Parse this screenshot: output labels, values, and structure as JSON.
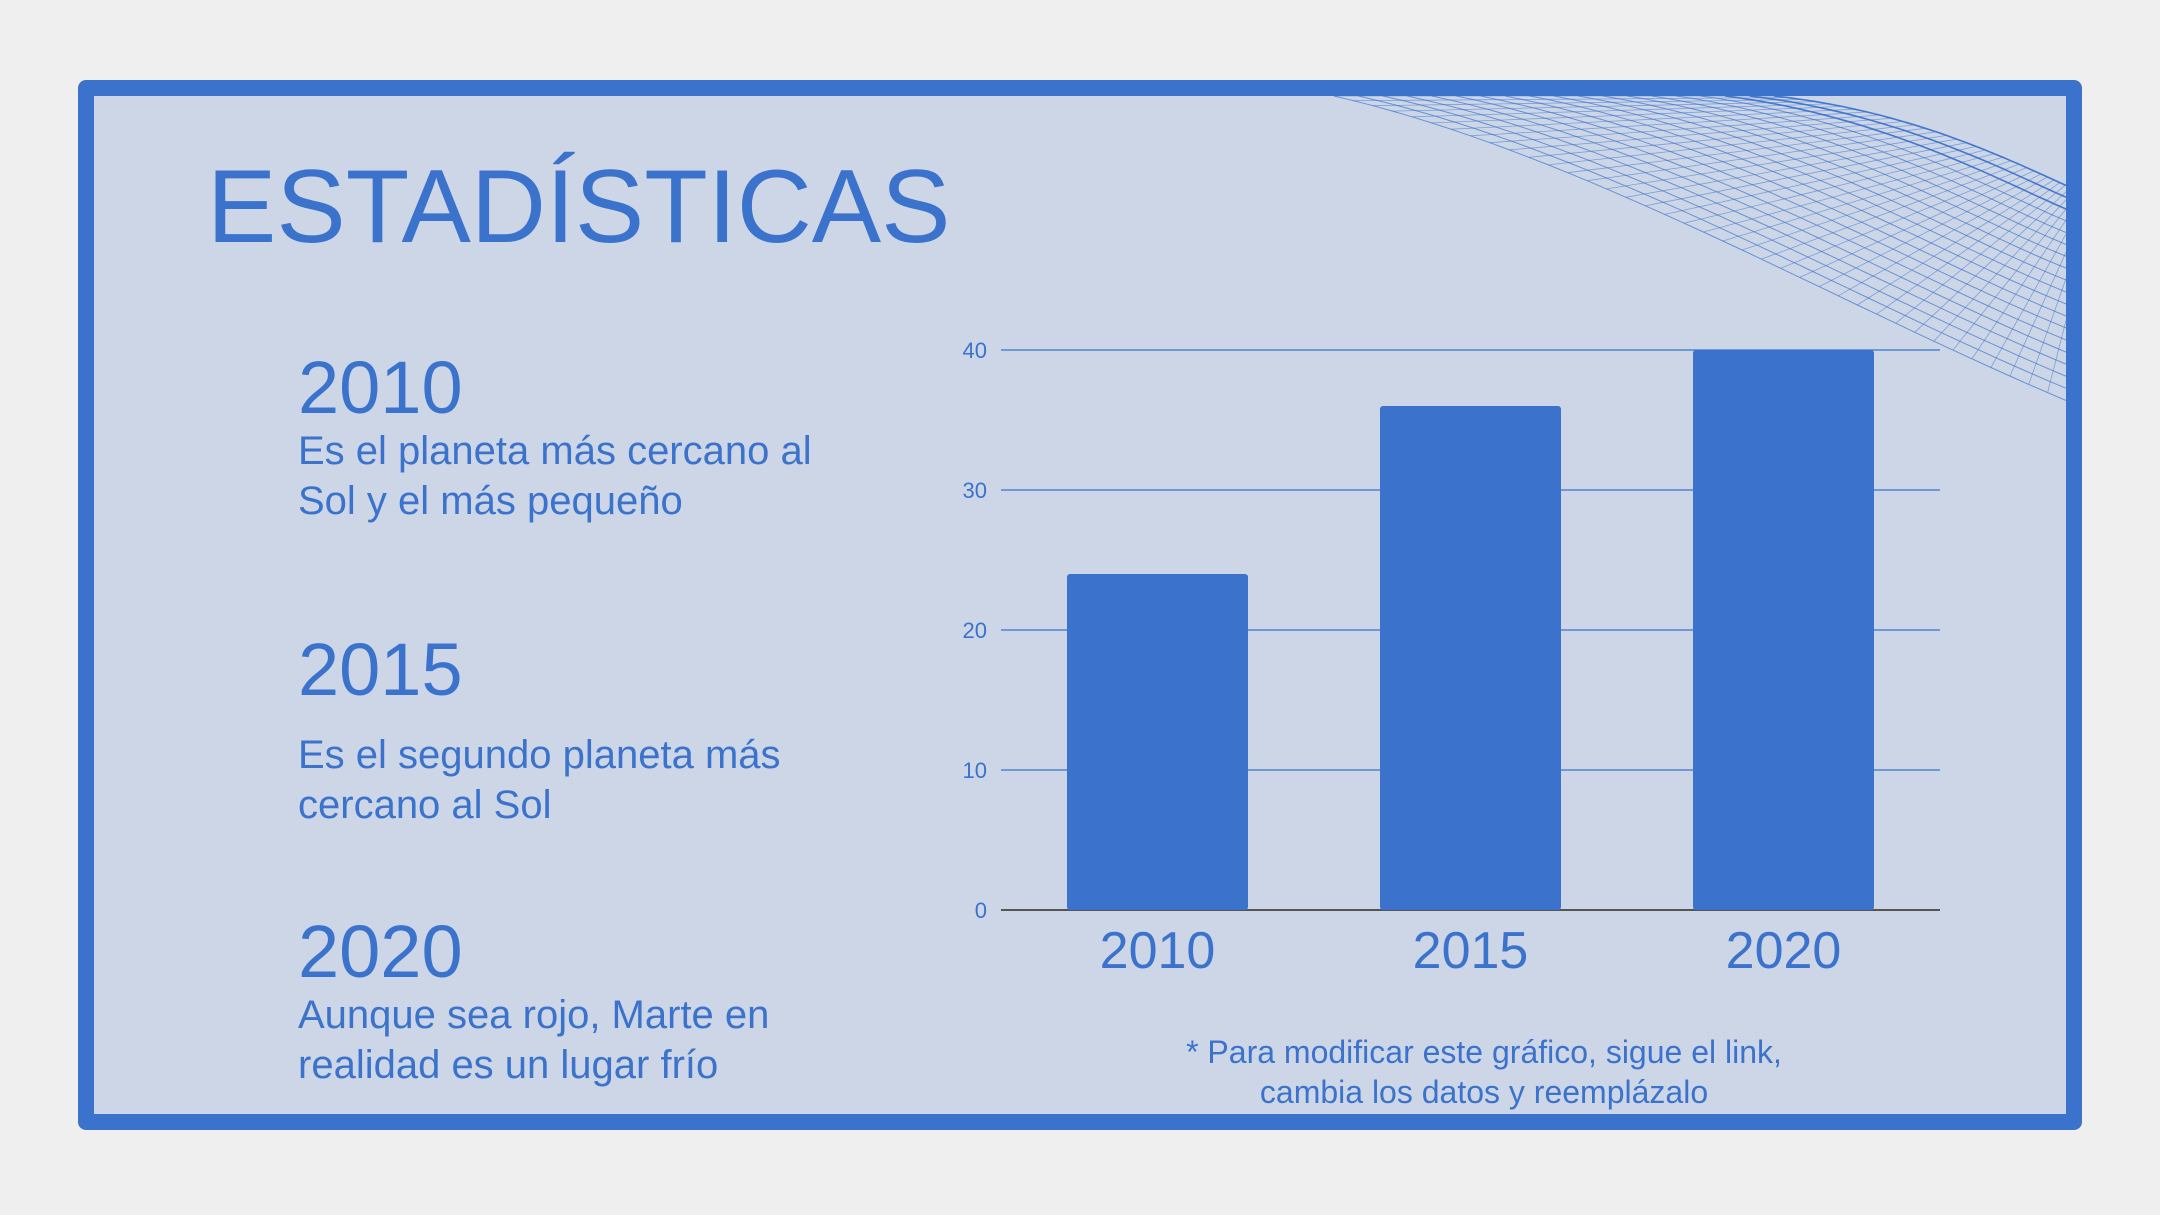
{
  "title": "ESTADÍSTICAS",
  "entries": [
    {
      "year": "2010",
      "text": "Es el planeta más cercano al Sol y el más pequeño"
    },
    {
      "year": "2015",
      "text": "Es el segundo planeta más cercano al Sol"
    },
    {
      "year": "2020",
      "text": "Aunque sea rojo, Marte en realidad es un lugar frío"
    }
  ],
  "footnote": {
    "line1": "* Para modificar este gráfico, sigue el link,",
    "line2": "cambia los datos y reemplázalo"
  },
  "colors": {
    "accent": "#3b73cc",
    "background": "#cdd6e7",
    "page": "#efefef"
  },
  "decoration": "mesh-wave",
  "chart_data": {
    "type": "bar",
    "categories": [
      "2010",
      "2015",
      "2020"
    ],
    "values": [
      24,
      36,
      40
    ],
    "yticks": [
      0,
      10,
      20,
      30,
      40
    ],
    "ylim": [
      0,
      40
    ],
    "grid": true,
    "legend": "none",
    "title": "",
    "xlabel": "",
    "ylabel": ""
  }
}
